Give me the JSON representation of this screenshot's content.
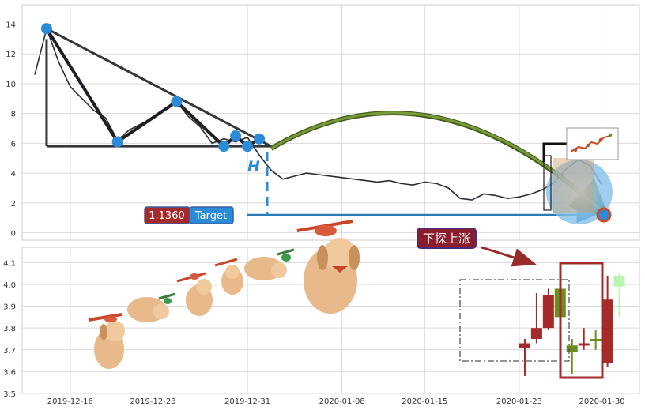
{
  "chart_data": [
    {
      "type": "line",
      "panel": "top",
      "title": "",
      "xlabel": "",
      "ylabel": "",
      "ylim": [
        -0.5,
        15.3
      ],
      "yticks": [
        0,
        2,
        4,
        6,
        8,
        10,
        12,
        14
      ],
      "grid": true,
      "series": [
        {
          "x": [
            "2019-12-13",
            "2019-12-14",
            "2019-12-15",
            "2019-12-16",
            "2019-12-17",
            "2019-12-18",
            "2019-12-19",
            "2019-12-20",
            "2019-12-21",
            "2019-12-22",
            "2019-12-23",
            "2019-12-24",
            "2019-12-25",
            "2019-12-26",
            "2019-12-27",
            "2019-12-28",
            "2019-12-29",
            "2019-12-30",
            "2019-12-31",
            "2020-01-01",
            "2020-01-02",
            "2020-01-03",
            "2020-01-04",
            "2020-01-05",
            "2020-01-06",
            "2020-01-07",
            "2020-01-08",
            "2020-01-09",
            "2020-01-10",
            "2020-01-11",
            "2020-01-12",
            "2020-01-13",
            "2020-01-14",
            "2020-01-15",
            "2020-01-16",
            "2020-01-17",
            "2020-01-18",
            "2020-01-19",
            "2020-01-20",
            "2020-01-21",
            "2020-01-22",
            "2020-01-23",
            "2020-01-24",
            "2020-01-25",
            "2020-01-26",
            "2020-01-27",
            "2020-01-28",
            "2020-01-29",
            "2020-01-30"
          ],
          "values": [
            10.6,
            13.7,
            11.5,
            9.8,
            9.0,
            8.2,
            7.7,
            6.2,
            6.9,
            7.3,
            7.7,
            8.3,
            8.8,
            7.8,
            7.1,
            6.0,
            6.3,
            6.1,
            6.4,
            5.2,
            4.2,
            3.6,
            3.8,
            4.0,
            3.9,
            3.8,
            3.7,
            3.6,
            3.5,
            3.4,
            3.5,
            3.3,
            3.2,
            3.4,
            3.3,
            3.0,
            2.3,
            2.2,
            2.6,
            2.5,
            2.3,
            2.4,
            2.6,
            2.9,
            3.4,
            4.3,
            4.9,
            4.5,
            3.2
          ]
        }
      ],
      "xticks": [
        "2019-12-16",
        "2019-12-23",
        "2019-12-31",
        "2020-01-08",
        "2020-01-15",
        "2020-01-23",
        "2020-01-30"
      ],
      "annotations": {
        "h_label": "H",
        "target_value": "1.1360",
        "target_label": "Target",
        "pattern_points": [
          {
            "x": "2019-12-14",
            "y": 13.7
          },
          {
            "x": "2019-12-20",
            "y": 6.1
          },
          {
            "x": "2019-12-25",
            "y": 8.8
          },
          {
            "x": "2019-12-29",
            "y": 5.8
          },
          {
            "x": "2019-12-30",
            "y": 6.5
          },
          {
            "x": "2019-12-31",
            "y": 5.8
          },
          {
            "x": "2020-01-01",
            "y": 6.3
          },
          {
            "x": "2020-01-31",
            "y": 1.136
          }
        ]
      }
    },
    {
      "type": "candlestick",
      "panel": "bottom",
      "ylim": [
        3.5,
        4.17
      ],
      "yticks": [
        "3.5",
        "3.6",
        "3.7",
        "3.8",
        "3.9",
        "4.0",
        "4.1"
      ],
      "grid": true,
      "callout": "下探上涨",
      "candles": [
        {
          "x": "2020-01-23",
          "open": 3.73,
          "close": 3.71,
          "high": 3.75,
          "low": 3.58,
          "color": "#a52a2a"
        },
        {
          "x": "2020-01-24",
          "open": 3.75,
          "close": 3.8,
          "high": 3.96,
          "low": 3.73,
          "color": "#a52a2a"
        },
        {
          "x": "2020-01-25",
          "open": 3.8,
          "close": 3.95,
          "high": 3.98,
          "low": 3.79,
          "color": "#a52a2a"
        },
        {
          "x": "2020-01-26",
          "open": 3.98,
          "close": 3.85,
          "high": 4.05,
          "low": 3.83,
          "color": "#6b8e23"
        },
        {
          "x": "2020-01-27",
          "open": 3.72,
          "close": 3.69,
          "high": 3.75,
          "low": 3.59,
          "color": "#6b8e23"
        },
        {
          "x": "2020-01-28",
          "open": 3.72,
          "close": 3.73,
          "high": 3.8,
          "low": 3.7,
          "color": "#a52a2a"
        },
        {
          "x": "2020-01-29",
          "open": 3.75,
          "close": 3.74,
          "high": 3.79,
          "low": 3.7,
          "color": "#6b8e23"
        },
        {
          "x": "2020-01-30",
          "open": 3.64,
          "close": 3.93,
          "high": 4.04,
          "low": 3.62,
          "color": "#a52a2a"
        },
        {
          "x": "2020-01-31",
          "open": 4.04,
          "close": 3.99,
          "high": 4.05,
          "low": 3.85,
          "color": "#b8f5b0"
        }
      ]
    }
  ],
  "colors": {
    "grid": "#d9d9d9",
    "price_line": "#2b2d33",
    "pattern": "#1d1f24",
    "marker": "#2b8bd6",
    "arc": "#6b8e23",
    "target_arrow": "#2b7bb9",
    "target_value_bg": "#a52a2a",
    "target_label_bg": "#2b8bd6",
    "callout_bg": "#8b1c2c",
    "callout_border": "#4a2a7a",
    "bear_box": "#a52a2a",
    "glow": "#7bbbe8"
  }
}
